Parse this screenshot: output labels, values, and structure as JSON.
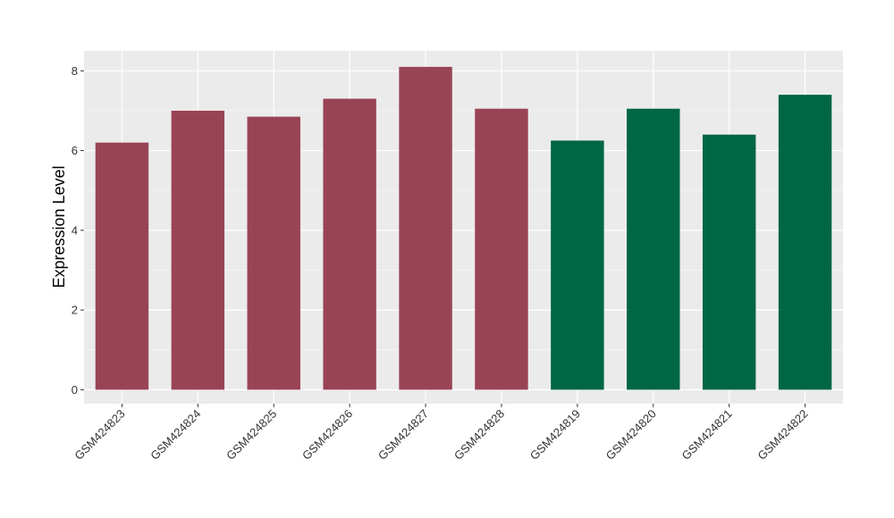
{
  "chart_data": {
    "type": "bar",
    "title": "",
    "xlabel": "",
    "ylabel": "Expression Level",
    "ylim": [
      -0.35,
      8.5
    ],
    "yticks": [
      0,
      2,
      4,
      6,
      8
    ],
    "grid": true,
    "legend": "none",
    "background": "#EBEBEB",
    "categories": [
      "GSM424823",
      "GSM424824",
      "GSM424825",
      "GSM424826",
      "GSM424827",
      "GSM424828",
      "GSM424819",
      "GSM424820",
      "GSM424821",
      "GSM424822"
    ],
    "values": [
      6.2,
      7.0,
      6.85,
      7.3,
      8.1,
      7.05,
      6.25,
      7.05,
      6.4,
      7.4
    ],
    "colors": [
      "#994455",
      "#994455",
      "#994455",
      "#994455",
      "#994455",
      "#994455",
      "#006644",
      "#006644",
      "#006644",
      "#006644"
    ]
  }
}
